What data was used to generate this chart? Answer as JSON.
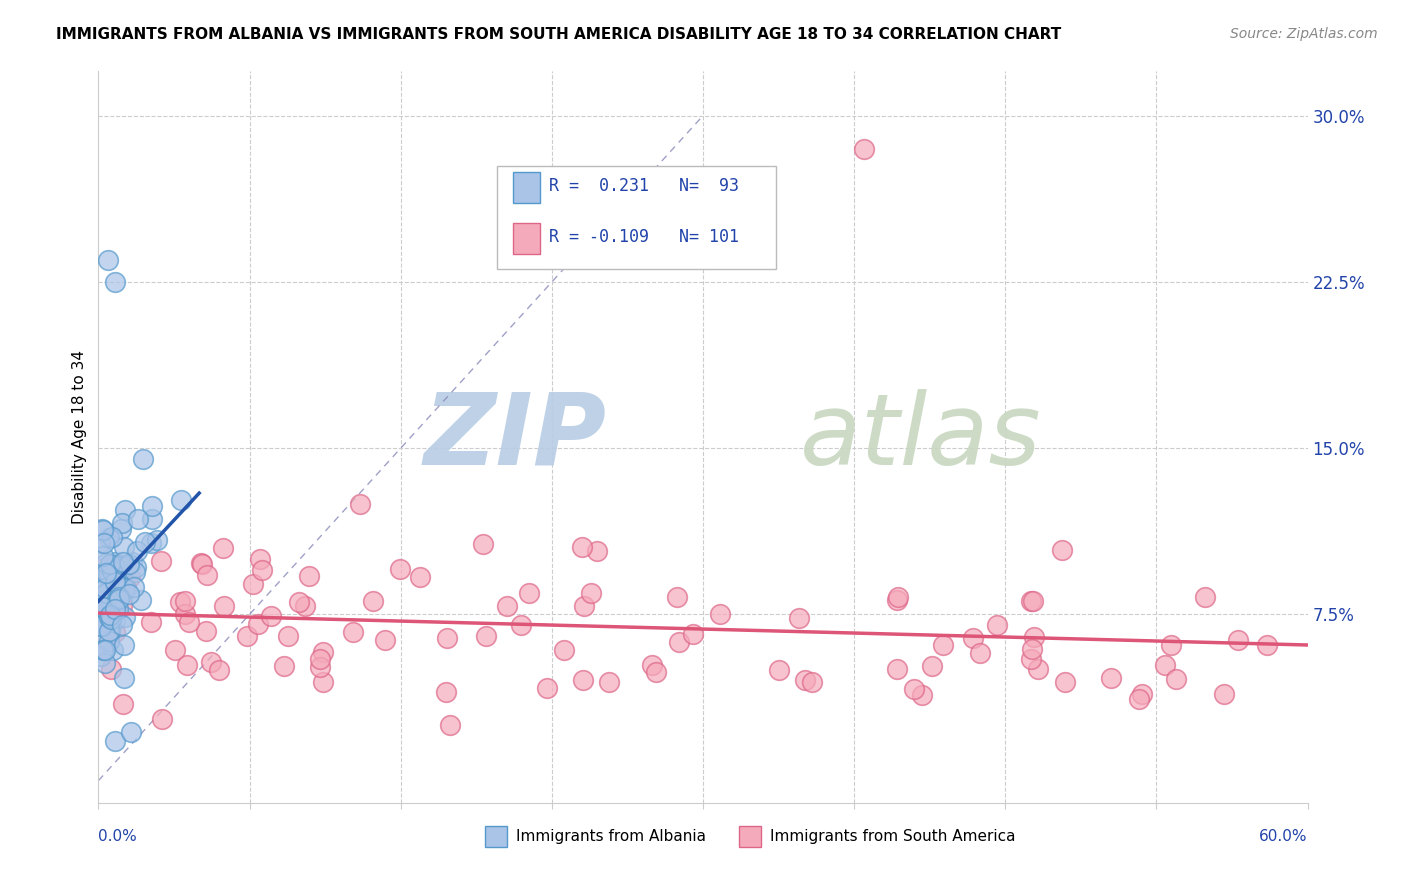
{
  "title": "IMMIGRANTS FROM ALBANIA VS IMMIGRANTS FROM SOUTH AMERICA DISABILITY AGE 18 TO 34 CORRELATION CHART",
  "source": "Source: ZipAtlas.com",
  "ylabel": "Disability Age 18 to 34",
  "ytick_vals": [
    0.0,
    0.075,
    0.15,
    0.225,
    0.3
  ],
  "ytick_labels": [
    "",
    "7.5%",
    "15.0%",
    "22.5%",
    "30.0%"
  ],
  "xlim": [
    0.0,
    0.6
  ],
  "ylim": [
    -0.01,
    0.32
  ],
  "albania_color": "#aac4e8",
  "albania_edge": "#5599cc",
  "south_america_color": "#f5aabb",
  "south_america_edge": "#dd6688",
  "albania_trend_color": "#2255aa",
  "south_america_trend_color": "#dd5577",
  "ref_line_color": "#8888bb",
  "watermark_zip_color": "#b8cce4",
  "watermark_atlas_color": "#c8d8c0",
  "legend_text_color": "#2244aa",
  "legend_r1": "R =  0.231",
  "legend_n1": "N=  93",
  "legend_r2": "R = -0.109",
  "legend_n2": "N= 101"
}
